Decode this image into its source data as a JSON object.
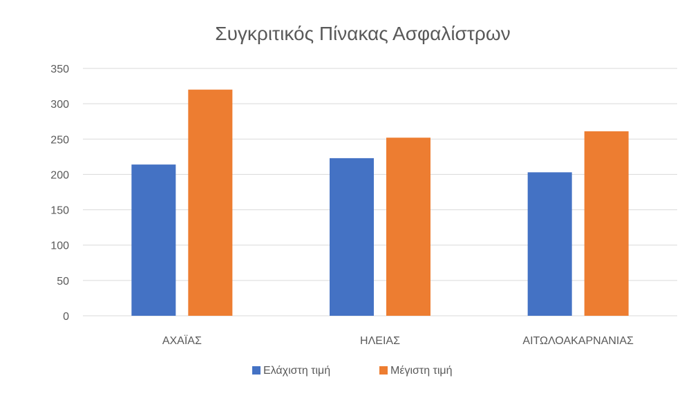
{
  "chart_data": {
    "type": "bar",
    "title": "Συγκριτικός Πίνακας Ασφαλίστρων",
    "categories": [
      "ΑΧΑΪΑΣ",
      "ΗΛΕΙΑΣ",
      "ΑΙΤΩΛΟΑΚΑΡΝΑΝΙΑΣ"
    ],
    "series": [
      {
        "name": "Ελάχιστη τιμή",
        "color": "#4472c4",
        "values": [
          214,
          223,
          203
        ]
      },
      {
        "name": "Μέγιστη τιμή",
        "color": "#ed7d31",
        "values": [
          320,
          252,
          261
        ]
      }
    ],
    "ylim": [
      0,
      350
    ],
    "yticks": [
      "0",
      "50",
      "100",
      "150",
      "200",
      "250",
      "300",
      "350"
    ],
    "xlabel": "",
    "ylabel": "",
    "grid": true,
    "legend_position": "bottom"
  }
}
